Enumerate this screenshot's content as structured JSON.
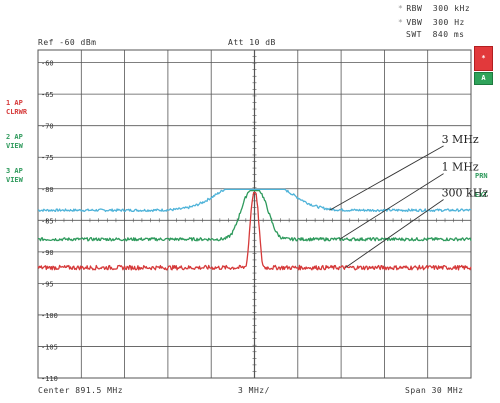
{
  "header": {
    "rbw_label": "RBW",
    "rbw_value": "300 kHz",
    "vbw_label": "VBW",
    "vbw_value": "300 Hz",
    "swt_label": "SWT",
    "swt_value": "840 ms",
    "ref": "Ref -60 dBm",
    "att": "Att 10 dB",
    "marker_star": "*"
  },
  "footer": {
    "center": "Center 891.5 MHz",
    "div": "3 MHz/",
    "span": "Span 30 MHz"
  },
  "side_labels": {
    "t1": [
      "1 AP",
      "CLRWR"
    ],
    "t2": [
      "2 AP",
      "VIEW"
    ],
    "t3": [
      "3 AP",
      "VIEW"
    ],
    "right": [
      "PRN",
      "EXT"
    ]
  },
  "buttons": {
    "red": "*",
    "green": "A"
  },
  "colors": {
    "grid": "#555555",
    "trace_3mhz": "#4fb3d9",
    "trace_1mhz": "#2e9a5c",
    "trace_300khz": "#d63a3a",
    "label_red": "#d63a3a",
    "label_green": "#2e9a5c"
  },
  "chart_data": {
    "type": "line",
    "x_unit": "MHz",
    "xlim": [
      876.5,
      906.5
    ],
    "ylim": [
      -110,
      -58
    ],
    "y_ticks": [
      -60,
      -65,
      -70,
      -75,
      -80,
      -85,
      -90,
      -95,
      -100,
      -105,
      -110
    ],
    "center_mhz": 891.5,
    "series": [
      {
        "name": "3 MHz",
        "color": "#4fb3d9",
        "rbw_mhz": 3,
        "peak_db": -80.1,
        "noise_db": -83.4,
        "jitter_db": 0.2
      },
      {
        "name": "1 MHz",
        "color": "#2e9a5c",
        "rbw_mhz": 1,
        "peak_db": -80.3,
        "noise_db": -88.0,
        "jitter_db": 0.25
      },
      {
        "name": "300 kHz",
        "color": "#d63a3a",
        "rbw_mhz": 0.3,
        "peak_db": -80.6,
        "noise_db": -92.5,
        "jitter_db": 0.35
      }
    ],
    "annotations": [
      {
        "text": "3 MHz",
        "line_from": [
          904.6,
          -73.2
        ],
        "line_to": [
          896.7,
          -83.4
        ]
      },
      {
        "text": "1 MHz",
        "line_from": [
          904.6,
          -77.6
        ],
        "line_to": [
          897.4,
          -88.0
        ]
      },
      {
        "text": "300 kHz",
        "line_from": [
          904.6,
          -81.7
        ],
        "line_to": [
          897.8,
          -92.5
        ]
      }
    ]
  }
}
